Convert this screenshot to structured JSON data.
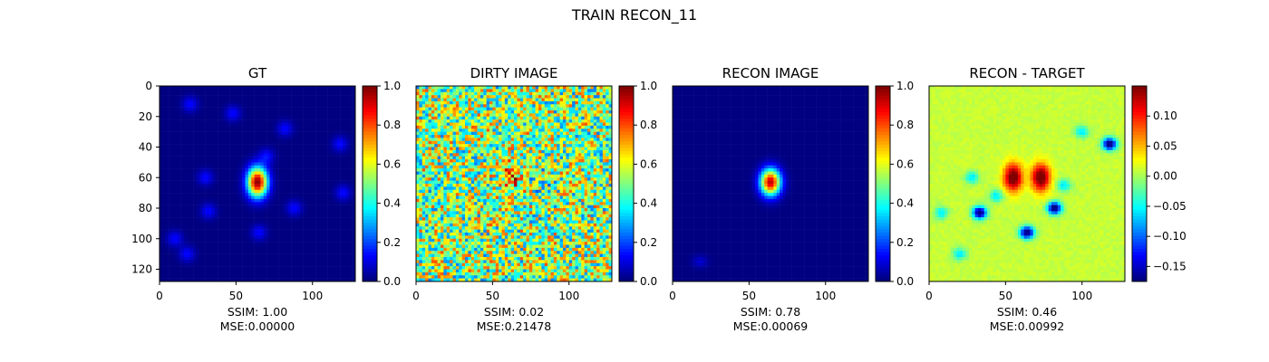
{
  "figure": {
    "suptitle": "TRAIN RECON_11"
  },
  "colormap": "jet",
  "chart_data": [
    {
      "type": "heatmap",
      "title": "GT",
      "xlim": [
        0,
        128
      ],
      "ylim": [
        128,
        0
      ],
      "xticks": [
        0,
        50,
        100
      ],
      "yticks": [
        0,
        20,
        40,
        60,
        80,
        100,
        120
      ],
      "colorbar": {
        "range": [
          0.0,
          1.0
        ],
        "ticks": [
          "0.0",
          "0.2",
          "0.4",
          "0.6",
          "0.8",
          "1.0"
        ]
      },
      "caption": [
        "SSIM: 1.00",
        "MSE:0.00000"
      ]
    },
    {
      "type": "heatmap",
      "title": "DIRTY IMAGE",
      "xlim": [
        0,
        128
      ],
      "ylim": [
        128,
        0
      ],
      "xticks": [
        0,
        50,
        100
      ],
      "colorbar": {
        "range": [
          0.0,
          1.0
        ],
        "ticks": [
          "0.0",
          "0.2",
          "0.4",
          "0.6",
          "0.8",
          "1.0"
        ]
      },
      "caption": [
        "SSIM: 0.02",
        "MSE:0.21478"
      ]
    },
    {
      "type": "heatmap",
      "title": "RECON IMAGE",
      "xlim": [
        0,
        128
      ],
      "ylim": [
        128,
        0
      ],
      "xticks": [
        0,
        50,
        100
      ],
      "colorbar": {
        "range": [
          0.0,
          1.0
        ],
        "ticks": [
          "0.0",
          "0.2",
          "0.4",
          "0.6",
          "0.8",
          "1.0"
        ]
      },
      "caption": [
        "SSIM: 0.78",
        "MSE:0.00069"
      ]
    },
    {
      "type": "heatmap",
      "title": "RECON - TARGET",
      "xlim": [
        0,
        128
      ],
      "ylim": [
        128,
        0
      ],
      "xticks": [
        0,
        50,
        100
      ],
      "colorbar": {
        "range": [
          -0.175,
          0.15
        ],
        "ticks": [
          "0.10",
          "0.05",
          "0.00",
          "−0.05",
          "−0.10",
          "−0.15"
        ]
      },
      "caption": [
        "SSIM: 0.46",
        "MSE:0.00992"
      ]
    }
  ]
}
